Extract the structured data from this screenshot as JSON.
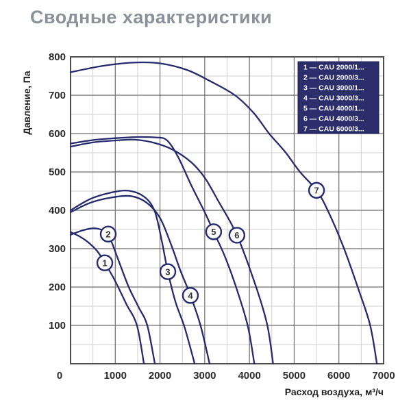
{
  "title": "Сводные характеристики",
  "colors": {
    "title": "#8a9199",
    "curve": "#242a6d",
    "legend_bg": "#2b2e6a",
    "legend_border": "#1d2050",
    "grid_major": "#6e6e6e",
    "grid_minor": "#cfcfcf",
    "frame": "#4d4d4d",
    "tick_text": "#2b2b2b",
    "marker_fill": "#ffffff"
  },
  "chart_data": {
    "type": "line",
    "title": "Сводные характеристики",
    "xlabel": "Расход воздуха, м³/ч",
    "ylabel": "Давление, Па",
    "xlim": [
      0,
      7000
    ],
    "ylim": [
      0,
      800
    ],
    "x_major_step": 1000,
    "x_minor_step": 500,
    "y_major_step": 100,
    "y_minor_step": 50,
    "x_tick_labels": [
      "0",
      "1000",
      "2000",
      "3000",
      "4000",
      "5000",
      "6000",
      "7000"
    ],
    "y_tick_labels": [
      "100",
      "200",
      "300",
      "400",
      "500",
      "600",
      "700",
      "800"
    ],
    "grid": true,
    "legend_position": "top-right",
    "legend_separator": " — ",
    "series": [
      {
        "num": "1",
        "name": "CAU 2000/1...",
        "marker": [
          766,
          263
        ],
        "points": [
          [
            0,
            343
          ],
          [
            200,
            332
          ],
          [
            400,
            316
          ],
          [
            600,
            293
          ],
          [
            766,
            263
          ],
          [
            1000,
            215
          ],
          [
            1250,
            155
          ],
          [
            1485,
            100
          ],
          [
            1640,
            0
          ]
        ]
      },
      {
        "num": "2",
        "name": "CAU 2000/3...",
        "marker": [
          842,
          338
        ],
        "points": [
          [
            0,
            336
          ],
          [
            250,
            347
          ],
          [
            500,
            353
          ],
          [
            700,
            349
          ],
          [
            842,
            338
          ],
          [
            1070,
            270
          ],
          [
            1300,
            200
          ],
          [
            1520,
            148
          ],
          [
            1715,
            100
          ],
          [
            1885,
            0
          ]
        ]
      },
      {
        "num": "3",
        "name": "CAU 3000/1...",
        "marker": [
          2175,
          240
        ],
        "points": [
          [
            0,
            400
          ],
          [
            450,
            430
          ],
          [
            900,
            446
          ],
          [
            1300,
            451
          ],
          [
            1650,
            435
          ],
          [
            1880,
            398
          ],
          [
            2040,
            320
          ],
          [
            2175,
            240
          ],
          [
            2350,
            160
          ],
          [
            2550,
            95
          ],
          [
            2775,
            0
          ]
        ]
      },
      {
        "num": "4",
        "name": "CAU 3000/3...",
        "marker": [
          2680,
          178
        ],
        "points": [
          [
            0,
            395
          ],
          [
            450,
            420
          ],
          [
            900,
            433
          ],
          [
            1350,
            437
          ],
          [
            1700,
            420
          ],
          [
            2000,
            380
          ],
          [
            2250,
            310
          ],
          [
            2450,
            245
          ],
          [
            2680,
            178
          ],
          [
            2905,
            100
          ],
          [
            3110,
            0
          ]
        ]
      },
      {
        "num": "5",
        "name": "CAU 4000/1...",
        "marker": [
          3200,
          344
        ],
        "points": [
          [
            0,
            574
          ],
          [
            500,
            583
          ],
          [
            1000,
            588
          ],
          [
            1500,
            591
          ],
          [
            1900,
            590
          ],
          [
            2150,
            583
          ],
          [
            2400,
            540
          ],
          [
            2700,
            465
          ],
          [
            3000,
            395
          ],
          [
            3200,
            344
          ],
          [
            3450,
            280
          ],
          [
            3700,
            200
          ],
          [
            3960,
            100
          ],
          [
            4110,
            0
          ]
        ]
      },
      {
        "num": "6",
        "name": "CAU 4000/3...",
        "marker": [
          3720,
          335
        ],
        "points": [
          [
            0,
            566
          ],
          [
            500,
            577
          ],
          [
            1000,
            582
          ],
          [
            1450,
            584
          ],
          [
            1900,
            575
          ],
          [
            2300,
            557
          ],
          [
            2700,
            525
          ],
          [
            3000,
            485
          ],
          [
            3300,
            425
          ],
          [
            3720,
            335
          ],
          [
            4150,
            200
          ],
          [
            4400,
            100
          ],
          [
            4530,
            0
          ]
        ]
      },
      {
        "num": "7",
        "name": "CAU 6000/3...",
        "marker": [
          5500,
          452
        ],
        "points": [
          [
            0,
            760
          ],
          [
            700,
            776
          ],
          [
            1400,
            785
          ],
          [
            2000,
            783
          ],
          [
            2600,
            766
          ],
          [
            3100,
            738
          ],
          [
            3675,
            700
          ],
          [
            4100,
            653
          ],
          [
            4440,
            600
          ],
          [
            4800,
            552
          ],
          [
            5130,
            500
          ],
          [
            5500,
            452
          ],
          [
            5750,
            400
          ],
          [
            6100,
            305
          ],
          [
            6450,
            190
          ],
          [
            6700,
            100
          ],
          [
            6850,
            0
          ]
        ]
      }
    ]
  }
}
